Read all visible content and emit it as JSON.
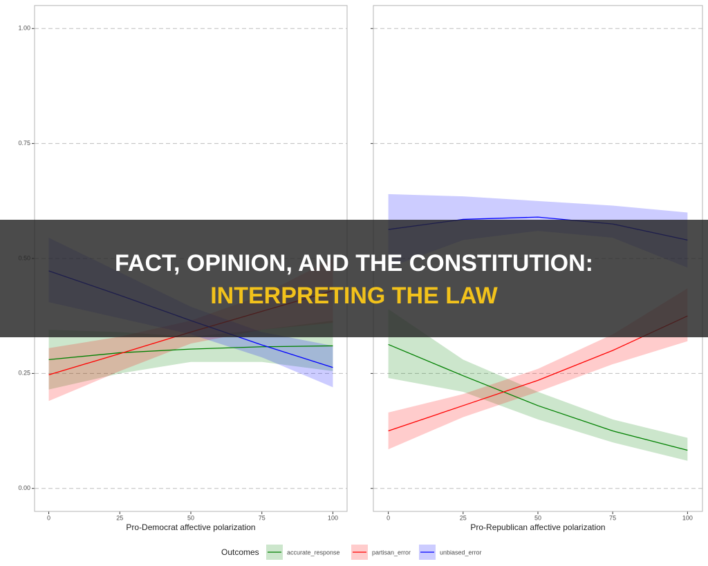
{
  "chart_data": [
    {
      "type": "line",
      "xlabel": "Pro-Democrat affective polarization",
      "x": [
        0,
        25,
        50,
        75,
        100
      ],
      "xlim": [
        -5,
        105
      ],
      "xticks": [
        0,
        25,
        50,
        75,
        100
      ],
      "ylim": [
        -0.05,
        1.05
      ],
      "yticks": [
        {
          "value": 0,
          "label": "0.00"
        },
        {
          "value": 0.25,
          "label": "0.25"
        },
        {
          "value": 0.5,
          "label": "0.50"
        },
        {
          "value": 0.75,
          "label": "0.75"
        },
        {
          "value": 1,
          "label": "1.00"
        }
      ],
      "grid": true,
      "series": [
        {
          "name": "accurate_response",
          "color": "#008000",
          "values": [
            0.28,
            0.295,
            0.303,
            0.308,
            0.31
          ],
          "lower": [
            0.215,
            0.25,
            0.275,
            0.275,
            0.255
          ],
          "upper": [
            0.345,
            0.34,
            0.33,
            0.345,
            0.365
          ]
        },
        {
          "name": "partisan_error",
          "color": "#ff0000",
          "values": [
            0.247,
            0.293,
            0.34,
            0.385,
            0.43
          ],
          "lower": [
            0.19,
            0.255,
            0.315,
            0.345,
            0.36
          ],
          "upper": [
            0.305,
            0.33,
            0.365,
            0.42,
            0.5
          ]
        },
        {
          "name": "unbiased_error",
          "color": "#0000ff",
          "values": [
            0.473,
            0.42,
            0.365,
            0.312,
            0.263
          ],
          "lower": [
            0.405,
            0.37,
            0.335,
            0.285,
            0.22
          ],
          "upper": [
            0.545,
            0.47,
            0.395,
            0.34,
            0.31
          ]
        }
      ]
    },
    {
      "type": "line",
      "xlabel": "Pro-Republican affective polarization",
      "x": [
        0,
        25,
        50,
        75,
        100
      ],
      "xlim": [
        -5,
        105
      ],
      "xticks": [
        0,
        25,
        50,
        75,
        100
      ],
      "ylim": [
        -0.05,
        1.05
      ],
      "yticks": [
        0,
        0.25,
        0.5,
        0.75,
        1
      ],
      "grid": true,
      "series": [
        {
          "name": "accurate_response",
          "color": "#008000",
          "values": [
            0.313,
            0.245,
            0.18,
            0.125,
            0.083
          ],
          "lower": [
            0.24,
            0.21,
            0.15,
            0.1,
            0.06
          ],
          "upper": [
            0.39,
            0.28,
            0.21,
            0.15,
            0.11
          ]
        },
        {
          "name": "partisan_error",
          "color": "#ff0000",
          "values": [
            0.125,
            0.18,
            0.235,
            0.3,
            0.375
          ],
          "lower": [
            0.085,
            0.155,
            0.21,
            0.27,
            0.32
          ],
          "upper": [
            0.165,
            0.205,
            0.26,
            0.335,
            0.435
          ]
        },
        {
          "name": "unbiased_error",
          "color": "#0000ff",
          "values": [
            0.563,
            0.585,
            0.59,
            0.575,
            0.54
          ],
          "lower": [
            0.48,
            0.54,
            0.56,
            0.545,
            0.48
          ],
          "upper": [
            0.64,
            0.635,
            0.625,
            0.615,
            0.6
          ]
        }
      ]
    }
  ],
  "legend": {
    "title": "Outcomes"
  },
  "banner": {
    "line1": "FACT, OPINION, AND THE CONSTITUTION:",
    "line2": "INTERPRETING THE LAW"
  }
}
